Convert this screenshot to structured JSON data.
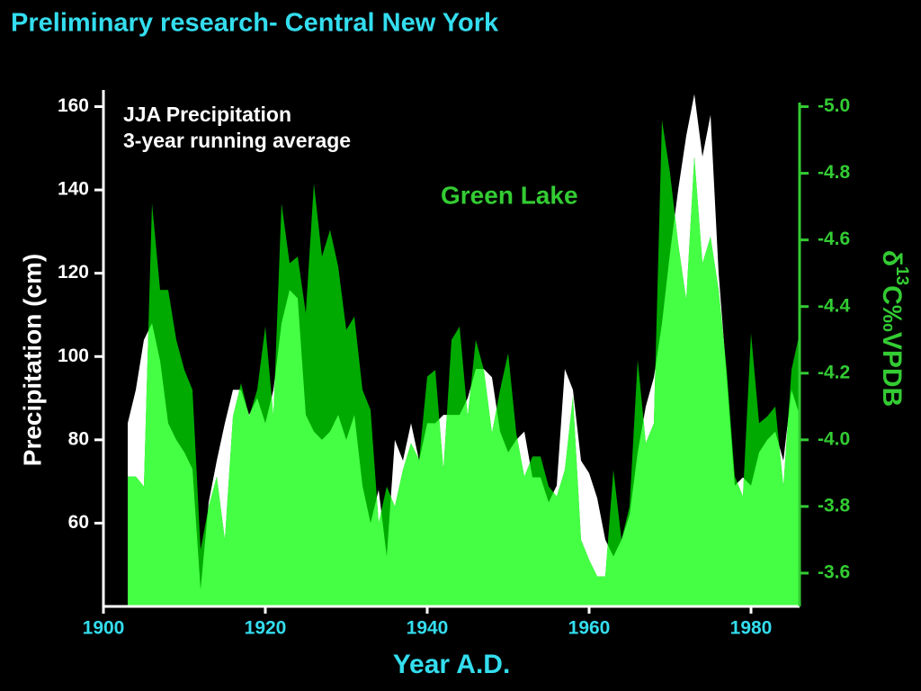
{
  "chart_data": {
    "type": "area",
    "title": "Preliminary research- Central New York",
    "annotations": [
      "JJA Precipitation",
      "3-year running average",
      "Green Lake"
    ],
    "xlabel": "Year A.D.",
    "ylabel": "Precipitation (cm)",
    "y2label": [
      "δ",
      "13",
      "C‰VPDB"
    ],
    "x": [
      1903,
      1904,
      1905,
      1906,
      1907,
      1908,
      1909,
      1910,
      1911,
      1912,
      1913,
      1914,
      1915,
      1916,
      1917,
      1918,
      1919,
      1920,
      1921,
      1922,
      1923,
      1924,
      1925,
      1926,
      1927,
      1928,
      1929,
      1930,
      1931,
      1932,
      1933,
      1934,
      1935,
      1936,
      1937,
      1938,
      1939,
      1940,
      1941,
      1942,
      1943,
      1944,
      1945,
      1946,
      1947,
      1948,
      1949,
      1950,
      1951,
      1952,
      1953,
      1954,
      1955,
      1956,
      1957,
      1958,
      1959,
      1960,
      1961,
      1962,
      1963,
      1964,
      1965,
      1966,
      1967,
      1968,
      1969,
      1970,
      1971,
      1972,
      1973,
      1974,
      1975,
      1976,
      1977,
      1978,
      1979,
      1980,
      1981,
      1982,
      1983,
      1984,
      1985,
      1986
    ],
    "series": [
      {
        "name": "JJA Precipitation",
        "color": "#ffffff",
        "values": [
          84,
          92,
          104,
          108,
          99,
          84,
          80,
          77,
          73,
          44,
          65,
          75,
          84,
          92,
          92,
          86,
          90,
          84,
          92,
          108,
          116,
          114,
          86,
          82,
          80,
          82,
          86,
          80,
          86,
          69,
          60,
          68,
          52,
          80,
          75,
          84,
          75,
          84,
          84,
          86,
          86,
          86,
          90,
          97,
          97,
          95,
          82,
          77,
          80,
          82,
          71,
          71,
          65,
          69,
          97,
          92,
          75,
          72,
          66,
          56,
          52,
          56,
          62,
          77,
          88,
          95,
          108,
          125,
          140,
          153,
          163,
          148,
          158,
          120,
          95,
          69,
          71,
          69,
          77,
          80,
          82,
          75,
          92,
          86
        ]
      },
      {
        "name": "Green Lake",
        "color": "#00aa00",
        "axis": "y2",
        "values": [
          -3.89,
          -3.89,
          -3.86,
          -4.71,
          -4.45,
          -4.45,
          -4.3,
          -4.21,
          -4.15,
          -3.67,
          -3.8,
          -3.89,
          -3.7,
          -4.07,
          -4.17,
          -4.07,
          -4.15,
          -4.34,
          -4.07,
          -4.71,
          -4.53,
          -4.55,
          -4.38,
          -4.77,
          -4.55,
          -4.63,
          -4.52,
          -4.33,
          -4.37,
          -4.15,
          -4.09,
          -3.75,
          -3.86,
          -3.8,
          -3.91,
          -3.99,
          -3.94,
          -4.19,
          -4.21,
          -3.91,
          -4.3,
          -4.34,
          -4.07,
          -4.3,
          -4.21,
          -4.02,
          -4.15,
          -4.26,
          -4.02,
          -3.89,
          -3.95,
          -3.95,
          -3.86,
          -3.83,
          -3.91,
          -4.13,
          -3.7,
          -3.64,
          -3.59,
          -3.59,
          -3.91,
          -3.7,
          -3.8,
          -4.24,
          -3.99,
          -4.05,
          -4.96,
          -4.8,
          -4.59,
          -4.42,
          -4.85,
          -4.53,
          -4.61,
          -4.45,
          -4.21,
          -3.89,
          -3.83,
          -4.32,
          -4.05,
          -4.07,
          -4.1,
          -3.86,
          -4.21,
          -4.32
        ]
      }
    ],
    "overlap_color": "#44ff44",
    "xlim": [
      1900,
      1986
    ],
    "xticks": [
      1900,
      1920,
      1940,
      1960,
      1980
    ],
    "ylim": [
      40,
      164
    ],
    "yticks": [
      60,
      80,
      100,
      120,
      140,
      160
    ],
    "y2lim": [
      -3.5,
      -5.05
    ],
    "y2ticks": [
      {
        "value": -3.6,
        "label": "-3.6"
      },
      {
        "value": -3.8,
        "label": "-3.8"
      },
      {
        "value": -4,
        "label": "-4.0"
      },
      {
        "value": -4.2,
        "label": "-4.2"
      },
      {
        "value": -4.4,
        "label": "-4.4"
      },
      {
        "value": -4.6,
        "label": "-4.6"
      },
      {
        "value": -4.8,
        "label": "-4.8"
      },
      {
        "value": -5,
        "label": "-5.0"
      }
    ]
  }
}
